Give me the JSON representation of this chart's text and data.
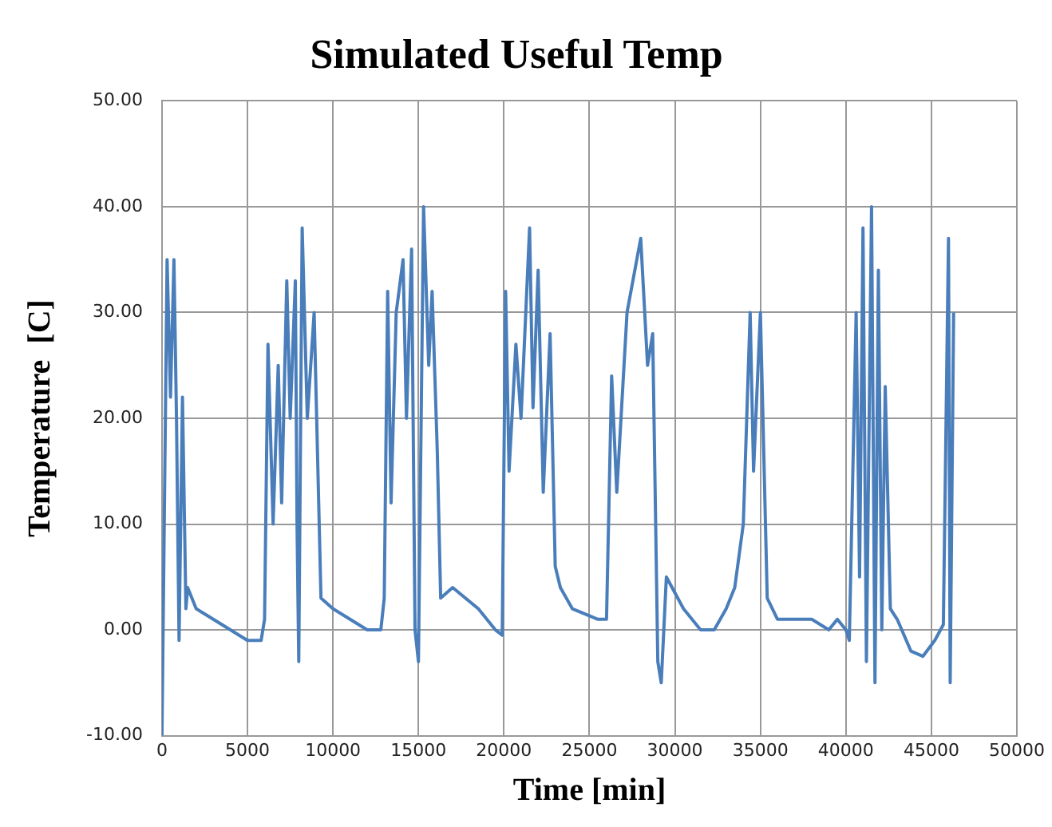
{
  "chart_data": {
    "type": "line",
    "title": "Simulated Useful Temp",
    "xlabel": "Time [min]",
    "ylabel": "Temperature  [C]",
    "x": [
      0,
      300,
      500,
      700,
      850,
      1000,
      1200,
      1400,
      1500,
      2000,
      3000,
      4000,
      5000,
      5800,
      6000,
      6200,
      6500,
      6800,
      7000,
      7300,
      7500,
      7800,
      7900,
      8000,
      8200,
      8500,
      8900,
      9300,
      10000,
      11000,
      12000,
      12800,
      13000,
      13200,
      13400,
      13700,
      14100,
      14300,
      14600,
      14800,
      15000,
      15300,
      15600,
      15800,
      16100,
      16300,
      17000,
      18500,
      19500,
      19900,
      20100,
      20300,
      20700,
      21000,
      21500,
      21700,
      22000,
      22300,
      22700,
      23000,
      23300,
      24000,
      25500,
      26000,
      26300,
      26600,
      27200,
      28000,
      28400,
      28700,
      29000,
      29200,
      29500,
      30500,
      31500,
      32300,
      33000,
      33500,
      34000,
      34400,
      34600,
      35000,
      35400,
      36000,
      38000,
      39000,
      39500,
      40000,
      40200,
      40600,
      40800,
      41000,
      41200,
      41500,
      41700,
      41900,
      42100,
      42300,
      42600,
      43000,
      43800,
      44500,
      45200,
      45700,
      46000,
      46100,
      46300
    ],
    "series": [
      {
        "color": "#4a7ebb",
        "values": [
          -10,
          35,
          22,
          35,
          20,
          -1,
          22,
          2,
          4,
          2,
          1,
          0,
          -1,
          -1,
          1,
          27,
          10,
          25,
          12,
          33,
          20,
          33,
          10,
          -3,
          38,
          20,
          30,
          3,
          2,
          1,
          0,
          0,
          3,
          32,
          12,
          30,
          35,
          20,
          36,
          0,
          -3,
          40,
          25,
          32,
          17,
          3,
          4,
          2,
          0,
          -0.5,
          32,
          15,
          27,
          20,
          38,
          21,
          34,
          13,
          28,
          6,
          4,
          2,
          1,
          1,
          24,
          13,
          30,
          37,
          25,
          28,
          -3,
          -5,
          5,
          2,
          0,
          0,
          2,
          4,
          10,
          30,
          15,
          30,
          3,
          1,
          1,
          0,
          1,
          0,
          -1,
          30,
          5,
          38,
          -3,
          40,
          -5,
          34,
          0,
          23,
          2,
          1,
          -2,
          -2.5,
          -1,
          0.5,
          37,
          -5,
          30
        ]
      }
    ],
    "xlim": [
      0,
      50000
    ],
    "xticks": [
      0,
      5000,
      10000,
      15000,
      20000,
      25000,
      30000,
      35000,
      40000,
      45000,
      50000
    ],
    "ylim": [
      -10,
      50
    ],
    "yticks": [
      {
        "value": -10,
        "label": "-10.00"
      },
      {
        "value": 0,
        "label": "0.00"
      },
      {
        "value": 10,
        "label": "10.00"
      },
      {
        "value": 20,
        "label": "20.00"
      },
      {
        "value": 30,
        "label": "30.00"
      },
      {
        "value": 40,
        "label": "40.00"
      },
      {
        "value": 50,
        "label": "50.00"
      }
    ],
    "grid": true,
    "legend": false,
    "marker": "none",
    "line_style": "solid"
  }
}
